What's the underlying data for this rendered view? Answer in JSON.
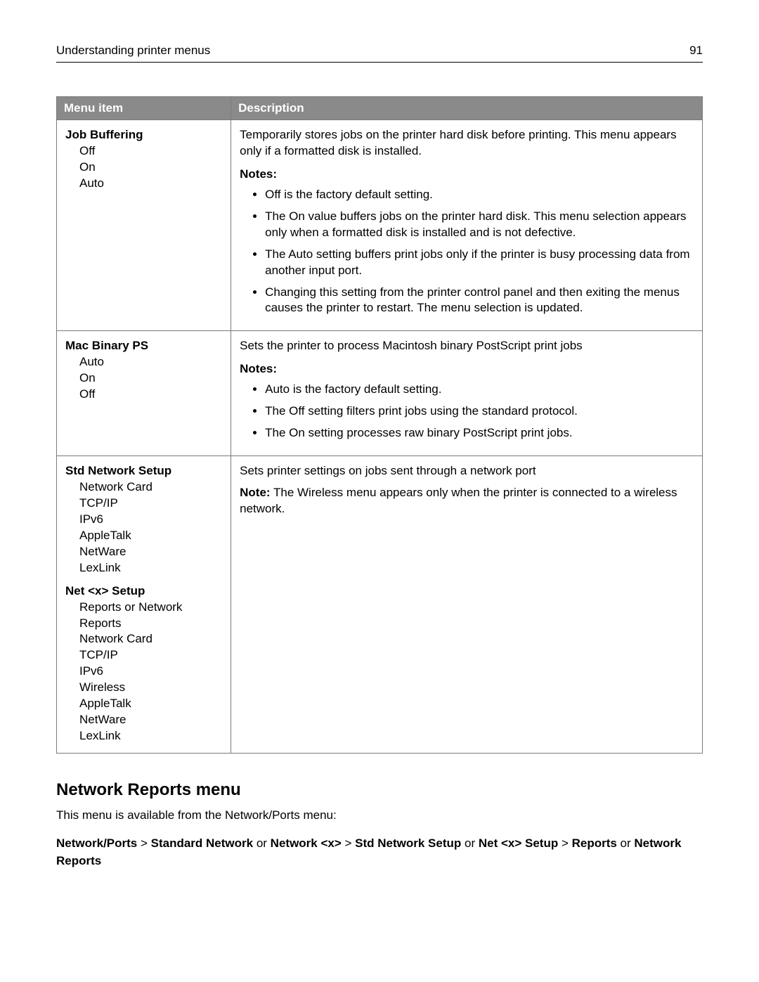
{
  "header": {
    "title": "Understanding printer menus",
    "page_number": "91"
  },
  "table": {
    "header_bg": "#8a8a8a",
    "header_fg": "#ffffff",
    "border_color": "#7a7a7a",
    "columns": {
      "menu_item": "Menu item",
      "description": "Description"
    },
    "rows": [
      {
        "menu": {
          "groups": [
            {
              "title": "Job Buffering",
              "subs": [
                "Off",
                "On",
                "Auto"
              ]
            }
          ]
        },
        "desc": {
          "intro": "Temporarily stores jobs on the printer hard disk before printing. This menu appears only if a formatted disk is installed.",
          "notes_label": "Notes:",
          "bullets": [
            "Off is the factory default setting.",
            "The On value buffers jobs on the printer hard disk. This menu selection appears only when a formatted disk is installed and is not defective.",
            "The Auto setting buffers print jobs only if the printer is busy processing data from another input port.",
            "Changing this setting from the printer control panel and then exiting the menus causes the printer to restart. The menu selection is updated."
          ]
        }
      },
      {
        "menu": {
          "groups": [
            {
              "title": "Mac Binary PS",
              "subs": [
                "Auto",
                "On",
                "Off"
              ]
            }
          ]
        },
        "desc": {
          "intro": "Sets the printer to process Macintosh binary PostScript print jobs",
          "notes_label": "Notes:",
          "bullets": [
            "Auto is the factory default setting.",
            "The Off setting filters print jobs using the standard protocol.",
            "The On setting processes raw binary PostScript print jobs."
          ]
        }
      },
      {
        "menu": {
          "groups": [
            {
              "title": "Std Network Setup",
              "subs": [
                "Network Card",
                "TCP/IP",
                "IPv6",
                "AppleTalk",
                "NetWare",
                "LexLink"
              ]
            },
            {
              "title": "Net <x> Setup",
              "subs": [
                "Reports or Network Reports",
                "Network Card",
                "TCP/IP",
                "IPv6",
                "Wireless",
                "AppleTalk",
                "NetWare",
                "LexLink"
              ]
            }
          ]
        },
        "desc": {
          "intro": "Sets printer settings on jobs sent through a network port",
          "note_inline": {
            "label": "Note:",
            "text": " The Wireless menu appears only when the printer is connected to a wireless network."
          }
        }
      }
    ]
  },
  "section": {
    "heading": "Network Reports menu",
    "lead": "This menu is available from the Network/Ports menu:",
    "breadcrumb": {
      "parts": [
        {
          "bold": true,
          "text": "Network/Ports"
        },
        {
          "bold": false,
          "text": " > "
        },
        {
          "bold": true,
          "text": "Standard Network"
        },
        {
          "bold": false,
          "text": " or "
        },
        {
          "bold": true,
          "text": "Network <x>"
        },
        {
          "bold": false,
          "text": " > "
        },
        {
          "bold": true,
          "text": "Std Network Setup"
        },
        {
          "bold": false,
          "text": " or "
        },
        {
          "bold": true,
          "text": "Net <x> Setup"
        },
        {
          "bold": false,
          "text": " > "
        },
        {
          "bold": true,
          "text": "Reports"
        },
        {
          "bold": false,
          "text": " or "
        },
        {
          "bold": true,
          "text": "Network Reports"
        }
      ]
    }
  }
}
